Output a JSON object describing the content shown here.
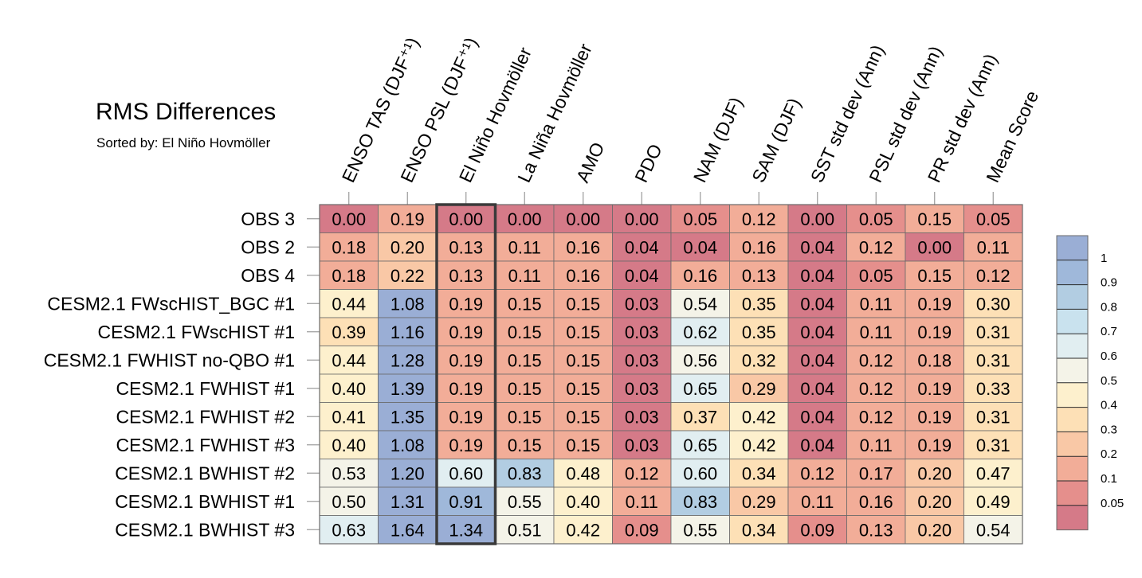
{
  "title": "RMS Differences",
  "subtitle": "Sorted by: El Niño Hovmöller",
  "colors": {
    "grid": "#6a6a6a",
    "highlight_box": "#3a3a3a",
    "text": "#000000"
  },
  "chart_data": {
    "type": "heatmap",
    "title": "RMS Differences",
    "subtitle": "Sorted by: El Niño Hovmöller",
    "sorted_by": "El Niño Hovmöller",
    "highlight_column": "El Niño Hovmöller",
    "columns": [
      "ENSO TAS (DJF⁺¹)",
      "ENSO PSL (DJF⁺¹)",
      "El Niño Hovmöller",
      "La Niña Hovmöller",
      "AMO",
      "PDO",
      "NAM (DJF)",
      "SAM (DJF)",
      "SST std dev (Ann)",
      "PSL std dev (Ann)",
      "PR std dev (Ann)",
      "Mean Score"
    ],
    "rows": [
      "OBS 3",
      "OBS 2",
      "OBS 4",
      "CESM2.1 FWscHIST_BGC #1",
      "CESM2.1 FWscHIST #1",
      "CESM2.1 FWHIST no-QBO #1",
      "CESM2.1 FWHIST #1",
      "CESM2.1 FWHIST #2",
      "CESM2.1 FWHIST #3",
      "CESM2.1 BWHIST #2",
      "CESM2.1 BWHIST #1",
      "CESM2.1 BWHIST #3"
    ],
    "values": [
      [
        "0.00",
        "0.19",
        "0.00",
        "0.00",
        "0.00",
        "0.00",
        "0.05",
        "0.12",
        "0.00",
        "0.05",
        "0.15",
        "0.05"
      ],
      [
        "0.18",
        "0.20",
        "0.13",
        "0.11",
        "0.16",
        "0.04",
        "0.04",
        "0.16",
        "0.04",
        "0.12",
        "0.00",
        "0.11"
      ],
      [
        "0.18",
        "0.22",
        "0.13",
        "0.11",
        "0.16",
        "0.04",
        "0.16",
        "0.13",
        "0.04",
        "0.05",
        "0.15",
        "0.12"
      ],
      [
        "0.44",
        "1.08",
        "0.19",
        "0.15",
        "0.15",
        "0.03",
        "0.54",
        "0.35",
        "0.04",
        "0.11",
        "0.19",
        "0.30"
      ],
      [
        "0.39",
        "1.16",
        "0.19",
        "0.15",
        "0.15",
        "0.03",
        "0.62",
        "0.35",
        "0.04",
        "0.11",
        "0.19",
        "0.31"
      ],
      [
        "0.44",
        "1.28",
        "0.19",
        "0.15",
        "0.15",
        "0.03",
        "0.56",
        "0.32",
        "0.04",
        "0.12",
        "0.18",
        "0.31"
      ],
      [
        "0.40",
        "1.39",
        "0.19",
        "0.15",
        "0.15",
        "0.03",
        "0.65",
        "0.29",
        "0.04",
        "0.12",
        "0.19",
        "0.33"
      ],
      [
        "0.41",
        "1.35",
        "0.19",
        "0.15",
        "0.15",
        "0.03",
        "0.37",
        "0.42",
        "0.04",
        "0.12",
        "0.19",
        "0.31"
      ],
      [
        "0.40",
        "1.08",
        "0.19",
        "0.15",
        "0.15",
        "0.03",
        "0.65",
        "0.42",
        "0.04",
        "0.11",
        "0.19",
        "0.31"
      ],
      [
        "0.53",
        "1.20",
        "0.60",
        "0.83",
        "0.48",
        "0.12",
        "0.60",
        "0.34",
        "0.12",
        "0.17",
        "0.20",
        "0.47"
      ],
      [
        "0.50",
        "1.31",
        "0.91",
        "0.55",
        "0.40",
        "0.11",
        "0.83",
        "0.29",
        "0.11",
        "0.16",
        "0.20",
        "0.49"
      ],
      [
        "0.63",
        "1.64",
        "1.34",
        "0.51",
        "0.42",
        "0.09",
        "0.55",
        "0.34",
        "0.09",
        "0.13",
        "0.20",
        "0.54"
      ]
    ],
    "colorbar": {
      "tick_labels": [
        "1",
        "0.9",
        "0.8",
        "0.7",
        "0.6",
        "0.5",
        "0.4",
        "0.3",
        "0.2",
        "0.1",
        "0.05"
      ],
      "levels": [
        0.05,
        0.1,
        0.2,
        0.3,
        0.4,
        0.5,
        0.6,
        0.7,
        0.8,
        0.9,
        1
      ],
      "colors": [
        "#d57a88",
        "#e58f8c",
        "#f2ad98",
        "#f9c8a6",
        "#fde0b6",
        "#fdf0cd",
        "#f4f3e8",
        "#e1eef1",
        "#c9e2ee",
        "#b2cde2",
        "#9fb8da",
        "#9aaed5"
      ]
    }
  }
}
